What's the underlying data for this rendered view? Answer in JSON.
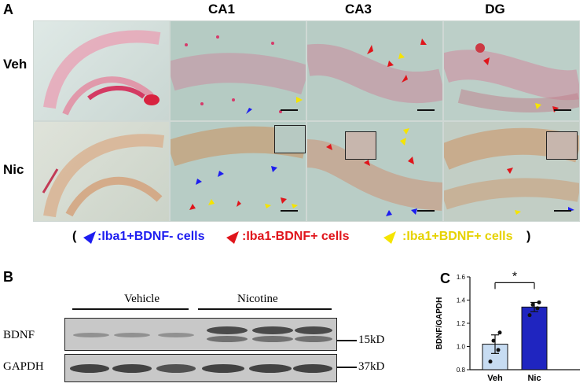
{
  "panel_a": {
    "letter": "A",
    "columns": [
      "CA1",
      "CA3",
      "DG"
    ],
    "rows": [
      "Veh",
      "Nic"
    ],
    "legend": {
      "open": "(",
      "close": ")",
      "items": [
        {
          "label": ":Iba1+BDNF- cells",
          "color": "#1d1df0"
        },
        {
          "label": ":Iba1-BDNF+ cells",
          "color": "#e0151b"
        },
        {
          "label": ":Iba1+BDNF+ cells",
          "color": "#f5e400"
        }
      ]
    }
  },
  "panel_b": {
    "letter": "B",
    "groups": [
      "Vehicle",
      "Nicotine"
    ],
    "rows": [
      {
        "label": "BDNF",
        "size": "15kD"
      },
      {
        "label": "GAPDH",
        "size": "37kD"
      }
    ]
  },
  "panel_c": {
    "letter": "C",
    "significance": "*"
  },
  "chart_data": {
    "type": "bar",
    "categories": [
      "Veh",
      "Nic"
    ],
    "values": [
      1.02,
      1.34
    ],
    "errors": [
      0.08,
      0.04
    ],
    "points": [
      [
        0.87,
        0.97,
        1.05,
        1.12
      ],
      [
        1.27,
        1.33,
        1.36,
        1.38
      ]
    ],
    "bar_colors": [
      "#c7dcf2",
      "#1f25c0"
    ],
    "ylabel": "BDNF/GAPDH",
    "xlabel": "",
    "ylim": [
      0.8,
      1.6
    ],
    "yticks": [
      "0.8",
      "1.0",
      "1.2",
      "1.4",
      "1.6"
    ]
  }
}
